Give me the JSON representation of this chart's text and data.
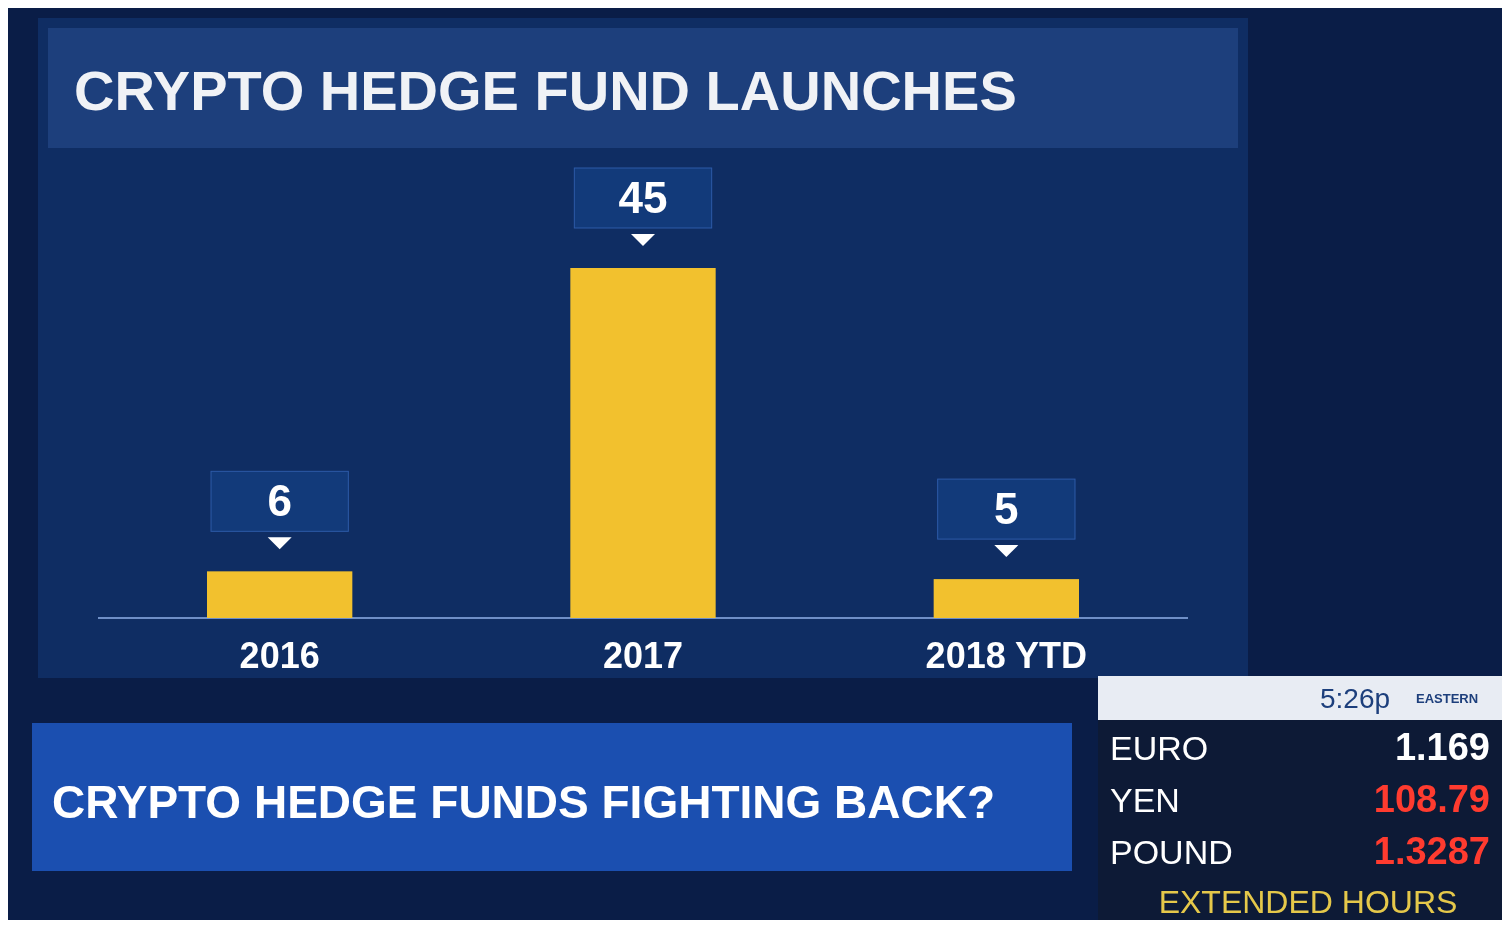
{
  "chart_data": [
    {
      "type": "bar",
      "title": "CRYPTO HEDGE FUND LAUNCHES",
      "categories": [
        "2016",
        "2017",
        "2018 YTD"
      ],
      "values": [
        6,
        45,
        5
      ],
      "color": "#f2c12e",
      "data_labels": true,
      "annotations": [
        "CRYPTO HEDGE FUNDS FIGHTING BACK?"
      ]
    },
    {
      "type": "other",
      "annotations": [
        "5:26p",
        "EASTERN",
        "EURO",
        "1.169",
        "YEN",
        "108.79",
        "POUND",
        "1.3287",
        "EXTENDED HOURS"
      ]
    }
  ]
}
